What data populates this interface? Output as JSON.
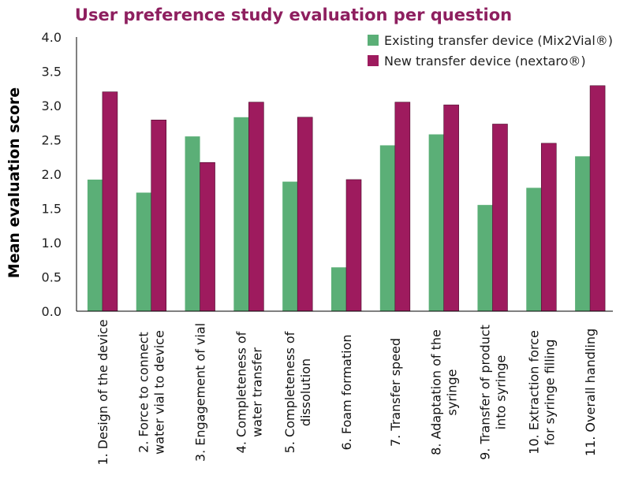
{
  "chart_data": {
    "type": "bar",
    "title": "User preference study evaluation per question",
    "xlabel": "",
    "ylabel": "Mean evaluation score",
    "ylim": [
      0,
      4.0
    ],
    "yticks": [
      "0.0",
      "0.5",
      "1.0",
      "1.5",
      "2.0",
      "2.5",
      "3.0",
      "3.5",
      "4.0"
    ],
    "grid": false,
    "legend_position": "top-right",
    "categories": [
      [
        "1. Design of the device"
      ],
      [
        "2. Force to connect",
        "water vial to device"
      ],
      [
        "3. Engagement of vial"
      ],
      [
        "4. Completeness of",
        "water transfer"
      ],
      [
        "5. Completeness of",
        "dissolution"
      ],
      [
        "6. Foam formation"
      ],
      [
        "7. Transfer speed"
      ],
      [
        "8. Adaptation of the",
        "syringe"
      ],
      [
        "9. Transfer of product",
        "into syringe"
      ],
      [
        "10. Extraction force",
        "for syringe filling"
      ],
      [
        "11. Overall handling"
      ]
    ],
    "series": [
      {
        "name": "Existing transfer device (Mix2Vial®)",
        "color": "#5BAF77",
        "values": [
          1.92,
          1.73,
          2.55,
          2.83,
          1.89,
          0.64,
          2.42,
          2.58,
          1.55,
          1.8,
          2.26
        ]
      },
      {
        "name": "New transfer device (nextaro®)",
        "color": "#9E1B5E",
        "values": [
          3.2,
          2.79,
          2.17,
          3.05,
          2.83,
          1.92,
          3.05,
          3.01,
          2.73,
          2.45,
          3.29
        ]
      }
    ],
    "title_color": "#8E1F5F"
  }
}
